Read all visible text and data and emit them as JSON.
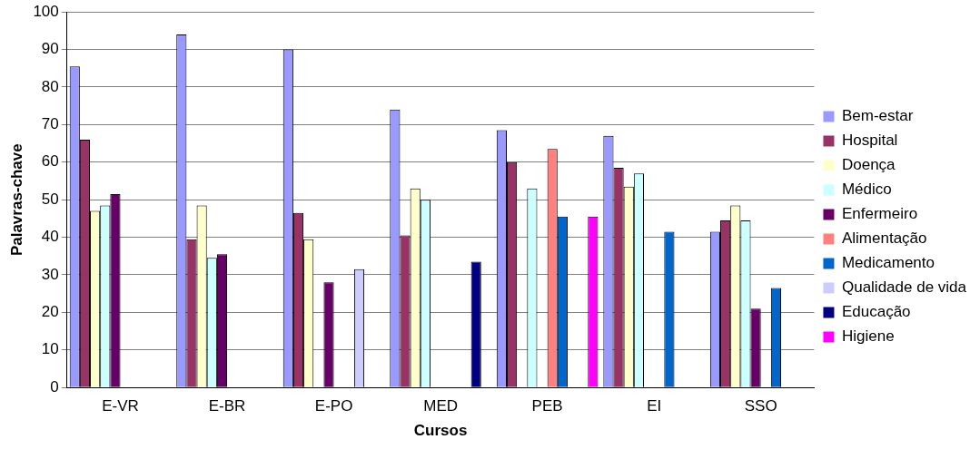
{
  "chart_data": {
    "type": "bar",
    "xlabel": "Cursos",
    "ylabel": "Palavras-chave",
    "categories": [
      "E-VR",
      "E-BR",
      "E-PO",
      "MED",
      "PEB",
      "EI",
      "SSO"
    ],
    "series": [
      {
        "name": "Bem-estar",
        "color": "#9999ff",
        "values": [
          85.5,
          94,
          90,
          74,
          68.5,
          67,
          41.5
        ]
      },
      {
        "name": "Hospital",
        "color": "#993366",
        "values": [
          66,
          39.5,
          46.5,
          40.5,
          60,
          58.5,
          44.5
        ]
      },
      {
        "name": "Doença",
        "color": "#ffffcc",
        "values": [
          47,
          48.5,
          39.5,
          53,
          null,
          53.5,
          48.5
        ]
      },
      {
        "name": "Médico",
        "color": "#ccffff",
        "values": [
          48.5,
          34.5,
          null,
          50,
          53,
          57,
          44.5
        ]
      },
      {
        "name": "Enfermeiro",
        "color": "#660066",
        "values": [
          51.5,
          35.5,
          28,
          null,
          null,
          null,
          21
        ]
      },
      {
        "name": "Alimentação",
        "color": "#ff8080",
        "values": [
          null,
          null,
          null,
          null,
          63.5,
          null,
          null
        ]
      },
      {
        "name": "Medicamento",
        "color": "#0066cc",
        "values": [
          null,
          null,
          null,
          null,
          45.5,
          41.5,
          26.5
        ]
      },
      {
        "name": "Qualidade de vida",
        "color": "#ccccff",
        "values": [
          null,
          null,
          31.5,
          null,
          null,
          null,
          null
        ]
      },
      {
        "name": "Educação",
        "color": "#000080",
        "values": [
          null,
          null,
          null,
          33.5,
          null,
          null,
          null
        ]
      },
      {
        "name": "Higiene",
        "color": "#ff00ff",
        "values": [
          null,
          null,
          null,
          null,
          45.5,
          null,
          null
        ]
      }
    ],
    "ylim": [
      0,
      100
    ],
    "yticks": [
      0,
      10,
      20,
      30,
      40,
      50,
      60,
      70,
      80,
      90,
      100
    ],
    "grid": "y",
    "legend": "right"
  }
}
